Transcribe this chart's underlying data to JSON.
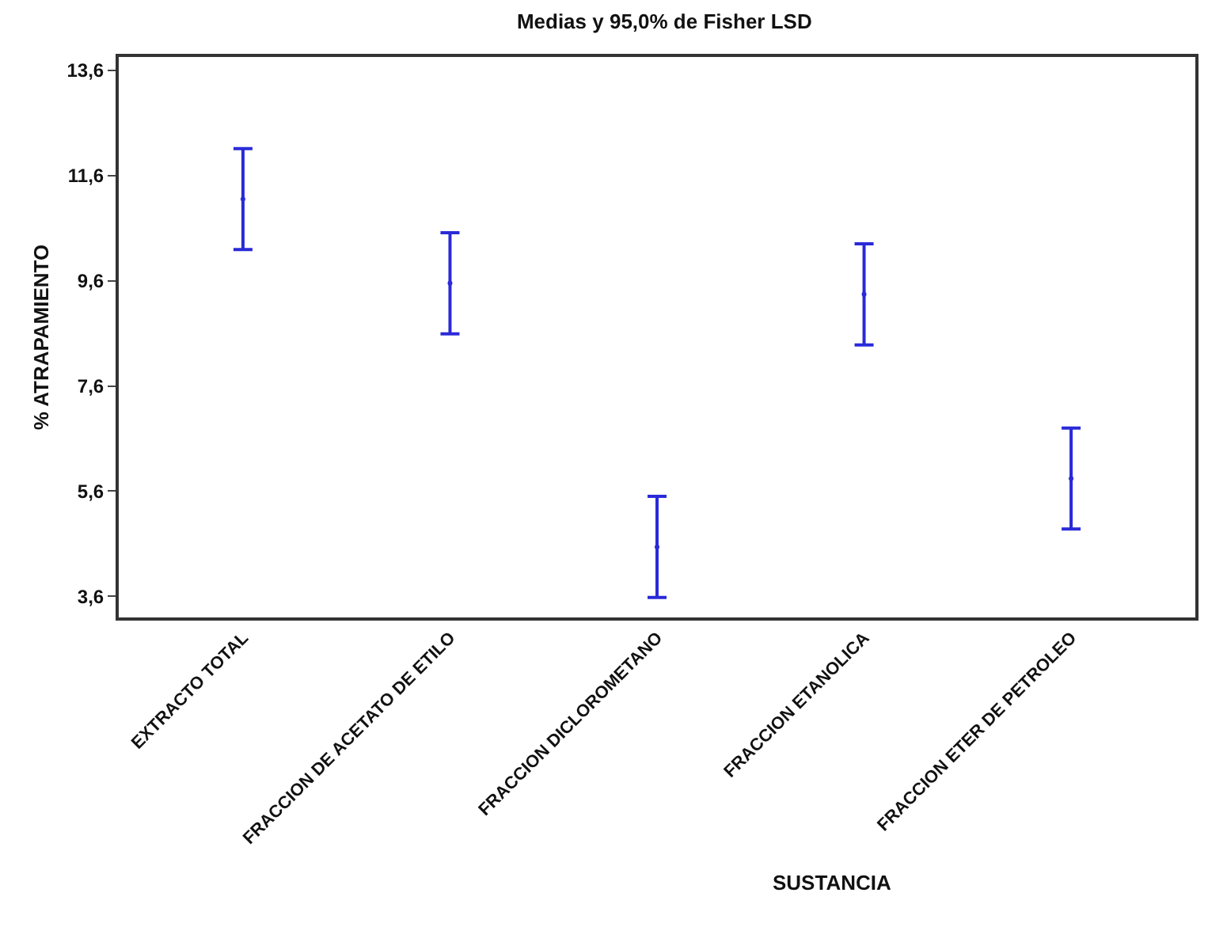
{
  "chart_data": {
    "type": "scatter",
    "title": "Medias y 95,0% de Fisher LSD",
    "xlabel": "SUSTANCIA",
    "ylabel": "% ATRAPAMIENTO",
    "categories": [
      "EXTRACTO TOTAL",
      "FRACCION DE ACETATO DE ETILO",
      "FRACCION DICLOROMETANO",
      "FRACCION ETANOLICA",
      "FRACCION ETER DE PETROLEO"
    ],
    "series": [
      {
        "color": "#2a2ad8",
        "values": [
          11.15,
          9.55,
          4.54,
          9.34,
          5.84
        ],
        "errors": [
          0.96,
          0.96,
          0.96,
          0.96,
          0.96
        ]
      }
    ],
    "ylim": [
      3.2,
      13.85
    ],
    "yticks": [
      {
        "value": 3.6,
        "label": "3,6"
      },
      {
        "value": 5.6,
        "label": "5,6"
      },
      {
        "value": 7.6,
        "label": "7,6"
      },
      {
        "value": 9.6,
        "label": "9,6"
      },
      {
        "value": 11.6,
        "label": "11,6"
      },
      {
        "value": 13.6,
        "label": "13,6"
      }
    ],
    "grid": false,
    "legend": false,
    "marker": "circle"
  }
}
